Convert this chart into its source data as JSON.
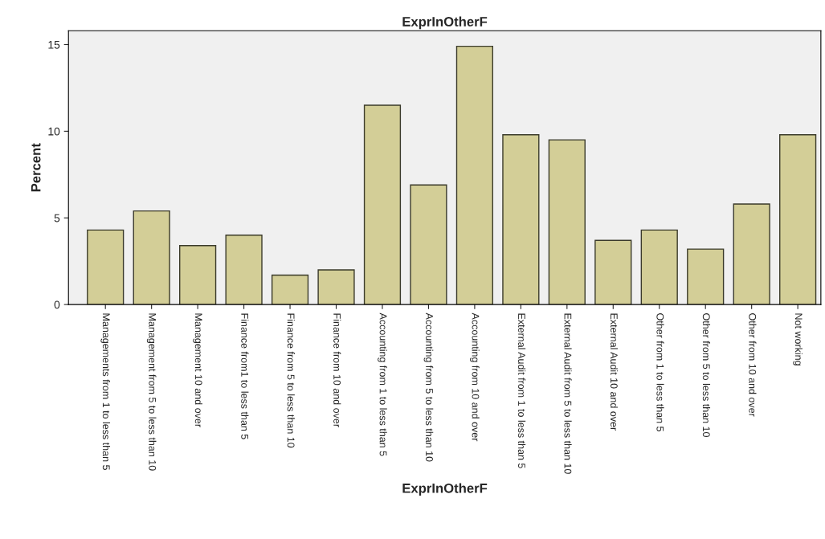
{
  "chart_data": {
    "type": "bar",
    "title": "ExprInOtherF",
    "xlabel": "ExprInOtherF",
    "ylabel": "Percent",
    "categories": [
      "Managements from 1 to less than 5",
      "Management from 5 to less than 10",
      "Management 10 and over",
      "Finance from1 to less than 5",
      "Finance from 5 to less than 10",
      "Finance from 10 and over",
      "Accounting from 1 to less than 5",
      "Accounting from 5 to less than 10",
      "Accounting from 10 and over",
      "External Audit from 1 to less than 5",
      "External Audit from 5 to less than 10",
      "External Audit 10 and over",
      "Other from 1 to less than 5",
      "Other from 5 to less than 10",
      "Other from 10 and over",
      "Not working"
    ],
    "values": [
      4.3,
      5.4,
      3.4,
      4.0,
      1.7,
      2.0,
      11.5,
      6.9,
      14.9,
      9.8,
      9.5,
      3.7,
      4.3,
      3.2,
      5.8,
      9.8
    ],
    "color": "#d3ce97",
    "ylim": [
      0,
      15.8
    ],
    "yticks": [
      0,
      5,
      10,
      15
    ],
    "grid": false,
    "legend": false
  }
}
